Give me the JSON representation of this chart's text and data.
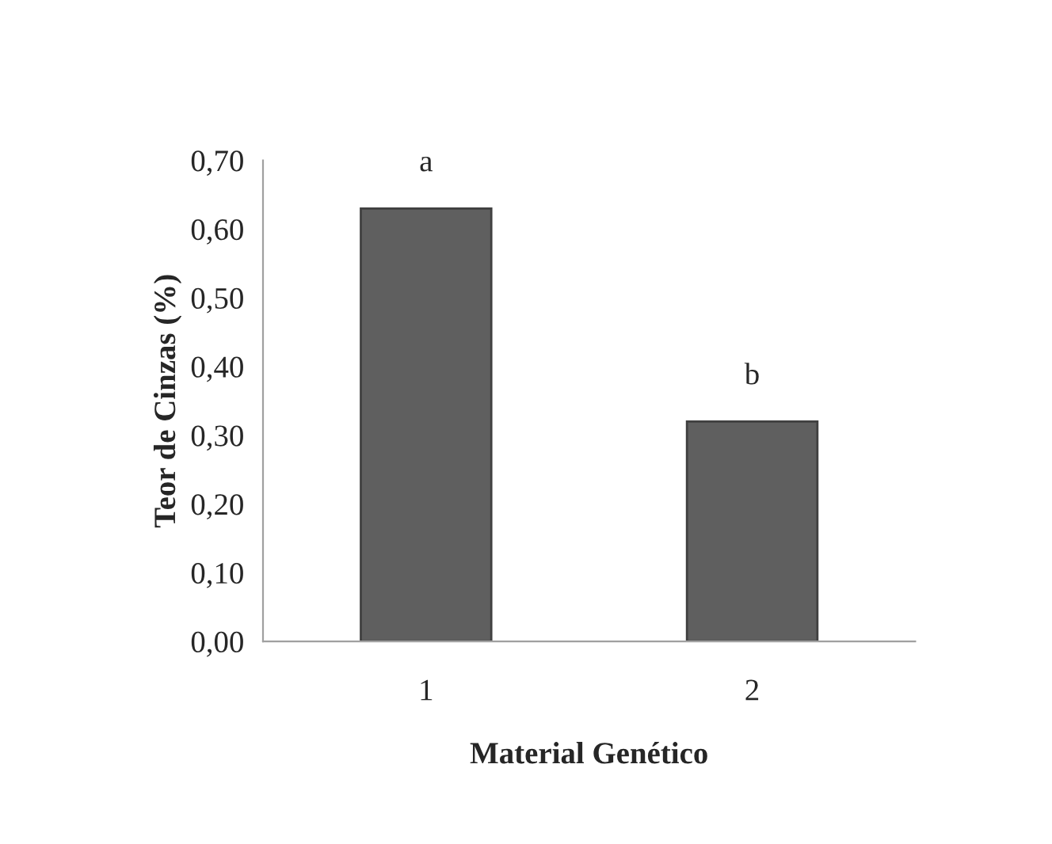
{
  "chart_data": {
    "type": "bar",
    "xlabel": "Material Genético",
    "ylabel": "Teor de Cinzas (%)",
    "categories": [
      "1",
      "2"
    ],
    "values": [
      0.63,
      0.32
    ],
    "color": "#5f5f5f",
    "ylim": [
      0,
      0.7
    ],
    "yticks": [
      {
        "value": 0,
        "label": "0,00"
      },
      {
        "value": 0.1,
        "label": "0,10"
      },
      {
        "value": 0.2,
        "label": "0,20"
      },
      {
        "value": 0.3,
        "label": "0,30"
      },
      {
        "value": 0.4,
        "label": "0,40"
      },
      {
        "value": 0.5,
        "label": "0,50"
      },
      {
        "value": 0.6,
        "label": "0,60"
      },
      {
        "value": 0.7,
        "label": "0,70"
      }
    ],
    "annotations": [
      {
        "text": "a",
        "x": "1",
        "y": 0.63
      },
      {
        "text": "b",
        "x": "2",
        "y": 0.32
      }
    ]
  }
}
